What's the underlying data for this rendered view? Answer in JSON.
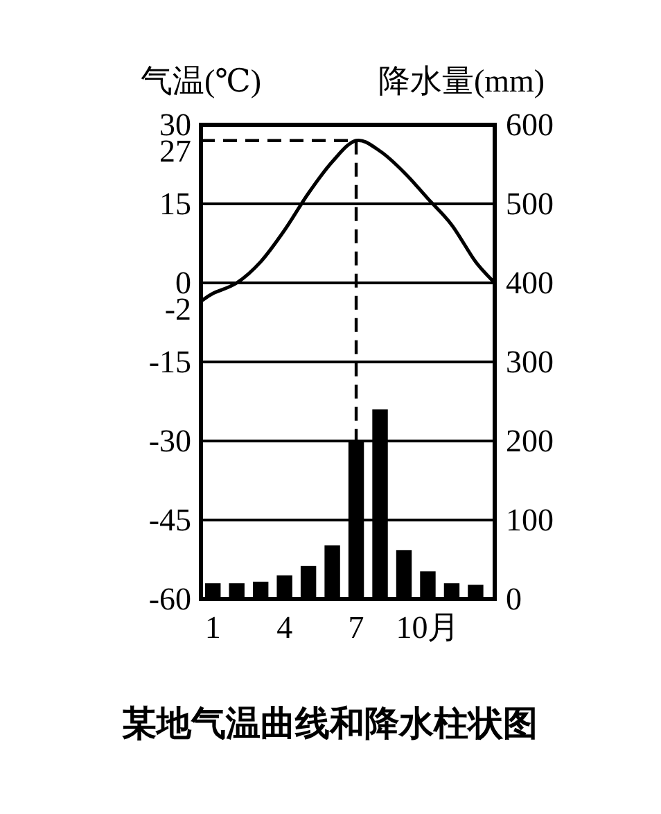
{
  "chart_data": {
    "type": "bar",
    "title": "某地气温曲线和降水柱状图",
    "ylabel": "气温(℃)",
    "y2label": "降水量(mm)",
    "x": [
      1,
      2,
      3,
      4,
      5,
      6,
      7,
      8,
      9,
      10,
      11,
      12
    ],
    "xlim": [
      0.5,
      12.8
    ],
    "xticks": [
      1,
      4,
      7,
      {
        "value": 10,
        "label": "10月"
      }
    ],
    "ylim": [
      -60,
      30
    ],
    "yticks": [
      30,
      27,
      15,
      0,
      -2,
      -15,
      -30,
      -45,
      -60
    ],
    "y2lim": [
      0,
      600
    ],
    "y2ticks": [
      600,
      500,
      400,
      300,
      200,
      100,
      0
    ],
    "grid": "y",
    "series": [
      {
        "axis": "y2",
        "color": "#000000",
        "values": [
          20,
          20,
          22,
          30,
          42,
          68,
          200,
          240,
          62,
          35,
          20,
          18
        ]
      },
      {
        "type": "line",
        "color": "#000000",
        "x": [
          0.5,
          1,
          2,
          3,
          4,
          5,
          6,
          7,
          8,
          9,
          10,
          11,
          12,
          12.8
        ],
        "values": [
          -3.5,
          -2,
          0,
          4,
          10,
          17,
          23,
          27,
          25,
          21,
          16,
          11,
          4,
          0
        ]
      }
    ],
    "ref_lines": [
      {
        "axis": "y",
        "value": 27,
        "line_style": "dashed"
      },
      {
        "axis": "x",
        "value": 7,
        "line_style": "dashed"
      }
    ]
  }
}
